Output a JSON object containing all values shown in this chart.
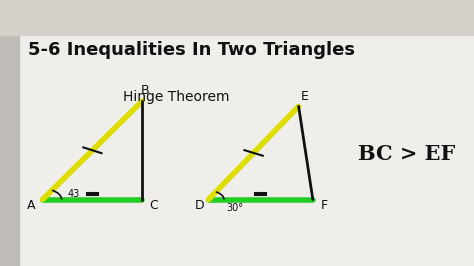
{
  "title": "5-6 Inequalities In Two Triangles",
  "subtitle": "Hinge Theorem",
  "inequality": "BC > EF",
  "bg_color": "#f0eeea",
  "toolbar_color": "#d4d0c8",
  "title_color": "#111111",
  "triangle1": {
    "A": [
      0.09,
      0.25
    ],
    "B": [
      0.3,
      0.62
    ],
    "C": [
      0.3,
      0.25
    ],
    "label_A": "A",
    "label_B": "B",
    "label_C": "C",
    "angle_label": "43",
    "ac_color": "#22cc22",
    "ab_color": "#dddd00",
    "bc_color": "#111111"
  },
  "triangle2": {
    "D": [
      0.44,
      0.25
    ],
    "E": [
      0.63,
      0.6
    ],
    "F": [
      0.66,
      0.25
    ],
    "label_D": "D",
    "label_E": "E",
    "label_F": "F",
    "angle_label": "30°",
    "df_color": "#22cc22",
    "de_color": "#dddd00",
    "ef_color": "#111111"
  },
  "figsize": [
    4.74,
    2.66
  ],
  "dpi": 100
}
